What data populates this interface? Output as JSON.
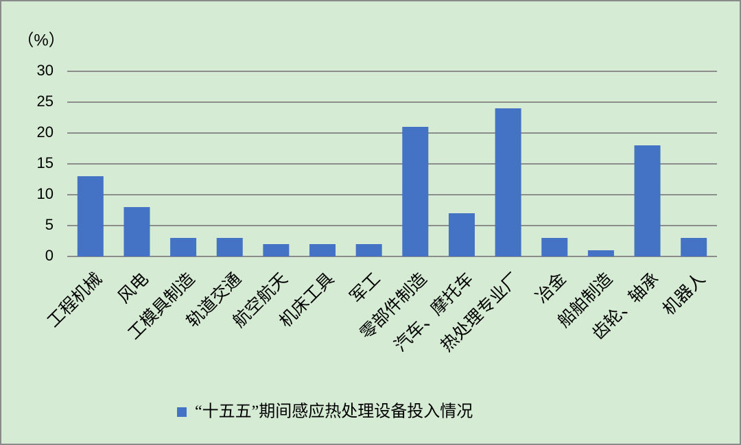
{
  "chart_data": {
    "type": "bar",
    "y_axis_label": "（%）",
    "categories": [
      "工程机械",
      "风电",
      "工模具制造",
      "轨道交通",
      "航空航天",
      "机床工具",
      "军工",
      "零部件制造",
      "汽车、摩托车",
      "热处理专业厂",
      "冶金",
      "船舶制造",
      "齿轮、轴承",
      "机器人"
    ],
    "series": [
      {
        "name": "“十五五”期间感应热处理设备投入情况",
        "color": "#4472c4",
        "values": [
          13,
          8,
          3,
          3,
          2,
          2,
          2,
          21,
          7,
          24,
          3,
          1,
          18,
          3
        ]
      }
    ],
    "ylim": [
      0,
      30
    ],
    "yticks": [
      0,
      5,
      10,
      15,
      20,
      25,
      30
    ],
    "grid": true,
    "legend": "bottom"
  }
}
